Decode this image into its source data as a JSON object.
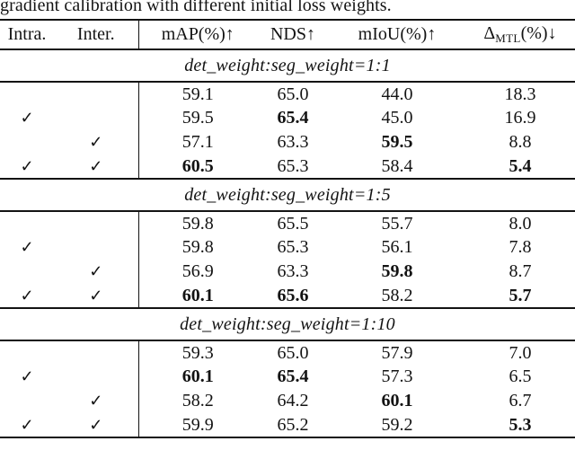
{
  "caption": "gradient calibration with different initial loss weights.",
  "check_glyph": "✓",
  "header": {
    "intra": "Intra.",
    "inter": "Inter.",
    "map": "mAP(%)↑",
    "nds": "NDS↑",
    "miou": "mIoU(%)↑",
    "delta_symbol": "Δ",
    "delta_sub": "MTL",
    "delta_suffix": "(%)↓"
  },
  "sections": [
    {
      "title": "det_weight:seg_weight=1:1",
      "rows": [
        {
          "intra": "",
          "inter": "",
          "map": "59.1",
          "nds": "65.0",
          "miou": "44.0",
          "delta": "18.3",
          "bold": ""
        },
        {
          "intra": "✓",
          "inter": "",
          "map": "59.5",
          "nds": "65.4",
          "miou": "45.0",
          "delta": "16.9",
          "bold": "nds"
        },
        {
          "intra": "",
          "inter": "✓",
          "map": "57.1",
          "nds": "63.3",
          "miou": "59.5",
          "delta": "8.8",
          "bold": "miou"
        },
        {
          "intra": "✓",
          "inter": "✓",
          "map": "60.5",
          "nds": "65.3",
          "miou": "58.4",
          "delta": "5.4",
          "bold": "map,delta"
        }
      ]
    },
    {
      "title": "det_weight:seg_weight=1:5",
      "rows": [
        {
          "intra": "",
          "inter": "",
          "map": "59.8",
          "nds": "65.5",
          "miou": "55.7",
          "delta": "8.0",
          "bold": ""
        },
        {
          "intra": "✓",
          "inter": "",
          "map": "59.8",
          "nds": "65.3",
          "miou": "56.1",
          "delta": "7.8",
          "bold": ""
        },
        {
          "intra": "",
          "inter": "✓",
          "map": "56.9",
          "nds": "63.3",
          "miou": "59.8",
          "delta": "8.7",
          "bold": "miou"
        },
        {
          "intra": "✓",
          "inter": "✓",
          "map": "60.1",
          "nds": "65.6",
          "miou": "58.2",
          "delta": "5.7",
          "bold": "map,nds,delta"
        }
      ]
    },
    {
      "title": "det_weight:seg_weight=1:10",
      "rows": [
        {
          "intra": "",
          "inter": "",
          "map": "59.3",
          "nds": "65.0",
          "miou": "57.9",
          "delta": "7.0",
          "bold": ""
        },
        {
          "intra": "✓",
          "inter": "",
          "map": "60.1",
          "nds": "65.4",
          "miou": "57.3",
          "delta": "6.5",
          "bold": "map,nds"
        },
        {
          "intra": "",
          "inter": "✓",
          "map": "58.2",
          "nds": "64.2",
          "miou": "60.1",
          "delta": "6.7",
          "bold": "miou"
        },
        {
          "intra": "✓",
          "inter": "✓",
          "map": "59.9",
          "nds": "65.2",
          "miou": "59.2",
          "delta": "5.3",
          "bold": "delta"
        }
      ]
    }
  ]
}
